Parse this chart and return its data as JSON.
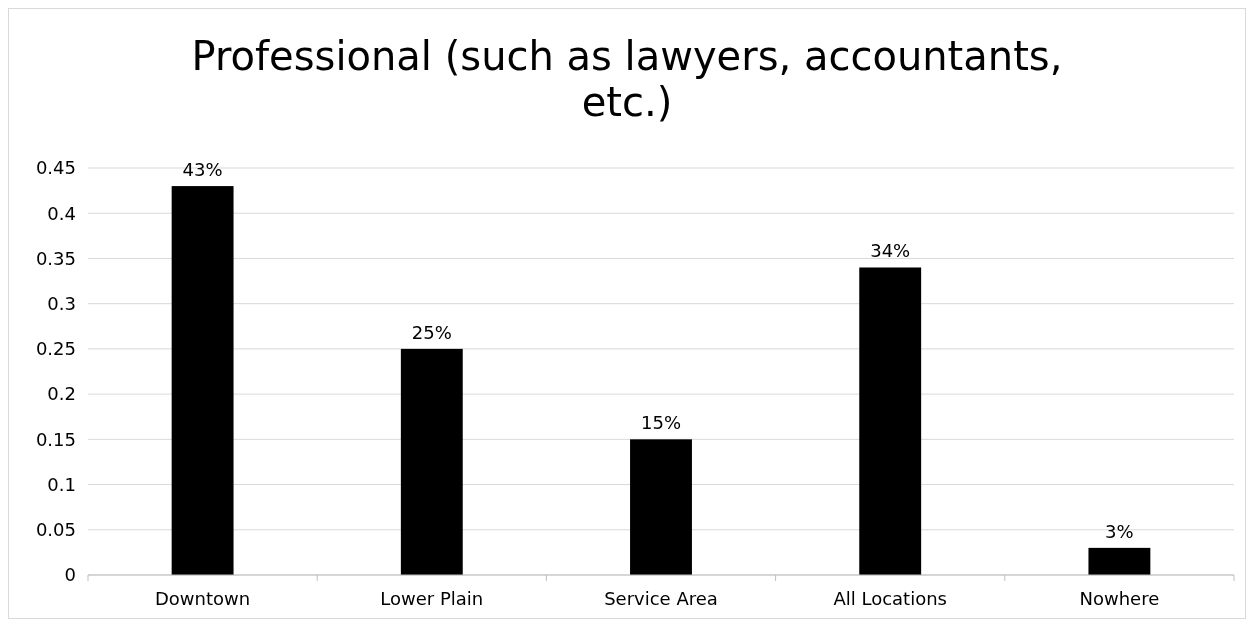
{
  "chart_data": {
    "type": "bar",
    "title": "Professional (such as lawyers, accountants, etc.)",
    "categories": [
      "Downtown",
      "Lower Plain",
      "Service Area",
      "All Locations",
      "Nowhere"
    ],
    "values": [
      0.43,
      0.25,
      0.15,
      0.34,
      0.03
    ],
    "value_labels": [
      "43%",
      "25%",
      "15%",
      "34%",
      "3%"
    ],
    "color": "#000000",
    "ylim": [
      0,
      0.45
    ],
    "yticks": [
      0,
      0.05,
      0.1,
      0.15,
      0.2,
      0.25,
      0.3,
      0.35,
      0.4,
      0.45
    ],
    "grid": "y"
  }
}
